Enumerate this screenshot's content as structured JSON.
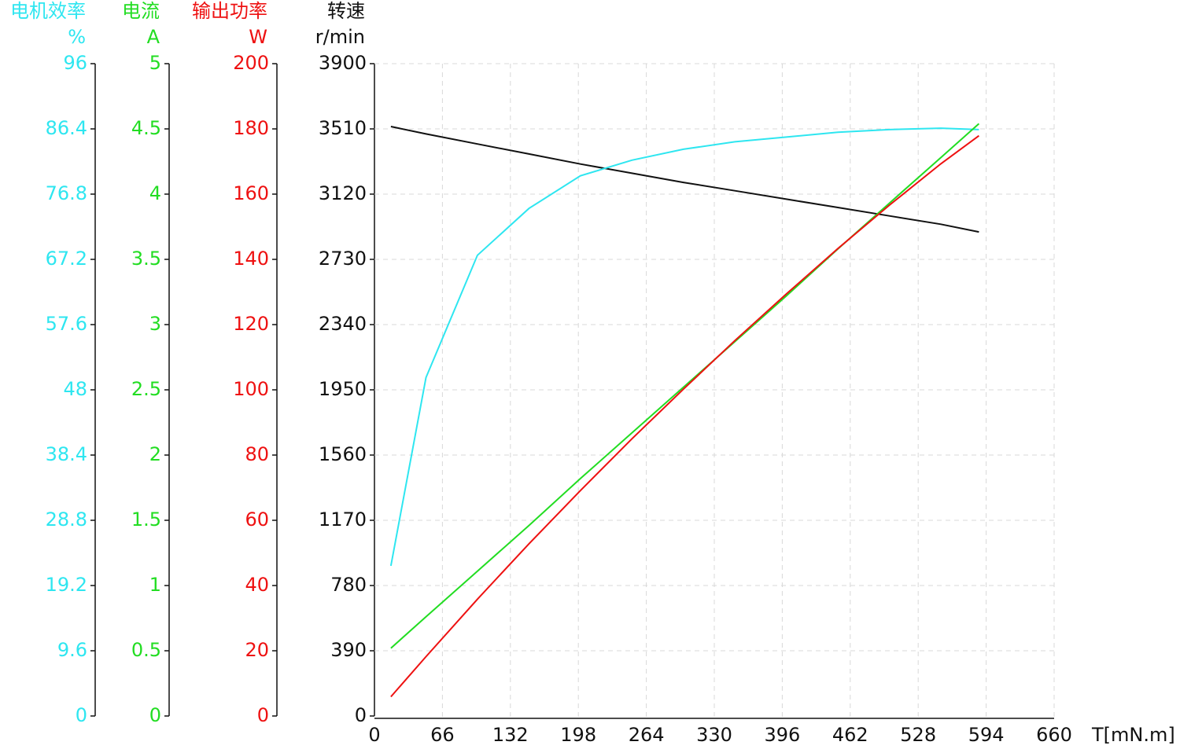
{
  "chart_data": {
    "type": "line",
    "xlabel": "T[mN.m]",
    "xlim": [
      0,
      660
    ],
    "xticks": [
      0,
      66,
      132,
      198,
      264,
      330,
      396,
      462,
      528,
      594,
      660
    ],
    "grid": true,
    "x": [
      16,
      50,
      100,
      150,
      200,
      250,
      300,
      350,
      400,
      450,
      500,
      550,
      587
    ],
    "axes": [
      {
        "title": "电机效率",
        "unit": "%",
        "color": "#2ee6f0",
        "lim": [
          0,
          96
        ],
        "ticks": [
          0,
          9.6,
          19.2,
          28.8,
          38.4,
          48,
          57.6,
          67.2,
          76.8,
          86.4,
          96
        ]
      },
      {
        "title": "电流",
        "unit": "A",
        "color": "#22dd22",
        "lim": [
          0,
          5
        ],
        "ticks": [
          0,
          0.5,
          1,
          1.5,
          2,
          2.5,
          3,
          3.5,
          4,
          4.5,
          5
        ]
      },
      {
        "title": "输出功率",
        "unit": "W",
        "color": "#ee1111",
        "lim": [
          0,
          200
        ],
        "ticks": [
          0,
          20,
          40,
          60,
          80,
          100,
          120,
          140,
          160,
          180,
          200
        ]
      },
      {
        "title": "转速",
        "unit": "r/min",
        "color": "#111111",
        "lim": [
          0,
          3900
        ],
        "ticks": [
          0,
          390,
          780,
          1170,
          1560,
          1950,
          2340,
          2730,
          3120,
          3510,
          3900
        ]
      }
    ],
    "series": [
      {
        "axis": 3,
        "color": "#111111",
        "values": [
          3524,
          3480,
          3420,
          3360,
          3300,
          3245,
          3190,
          3140,
          3090,
          3040,
          2990,
          2940,
          2894
        ]
      },
      {
        "axis": 0,
        "color": "#2ee6f0",
        "values": [
          22.1,
          49.8,
          67.8,
          74.7,
          79.5,
          81.8,
          83.4,
          84.5,
          85.2,
          85.9,
          86.3,
          86.5,
          86.3
        ]
      },
      {
        "axis": 1,
        "color": "#22dd22",
        "values": [
          0.52,
          0.76,
          1.11,
          1.46,
          1.82,
          2.17,
          2.52,
          2.87,
          3.22,
          3.58,
          3.93,
          4.28,
          4.54
        ]
      },
      {
        "axis": 2,
        "color": "#ee1111",
        "values": [
          5.9,
          18.2,
          35.8,
          52.8,
          69.1,
          85.0,
          100.2,
          115.1,
          129.4,
          143.3,
          156.6,
          169.3,
          177.9
        ]
      }
    ]
  }
}
